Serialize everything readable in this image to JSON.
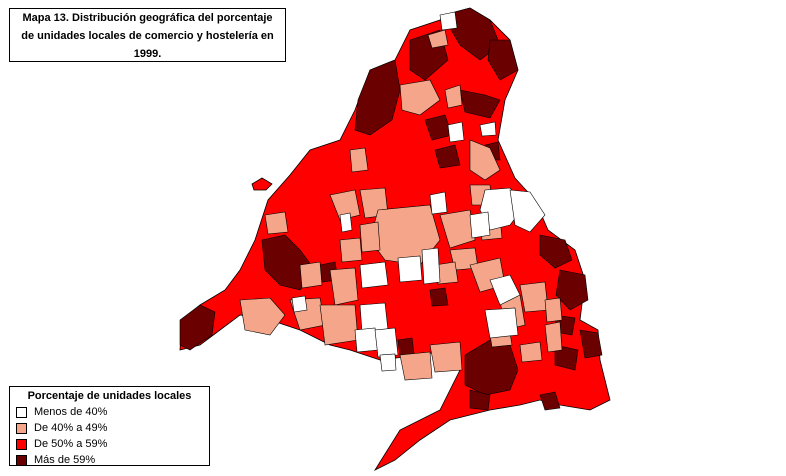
{
  "title": {
    "lines": [
      "Mapa 13. Distribución geográfica del porcentaje",
      "de unidades locales de comercio y hostelería en",
      "1999."
    ]
  },
  "legend": {
    "title": "Porcentaje de unidades locales",
    "items": [
      {
        "label": "Menos de 40%",
        "color": "#ffffff"
      },
      {
        "label": "De 40% a 49%",
        "color": "#f4a58a"
      },
      {
        "label": "De 50% a 59%",
        "color": "#ff0000"
      },
      {
        "label": "Más de 59%",
        "color": "#6b0000"
      }
    ]
  }
}
